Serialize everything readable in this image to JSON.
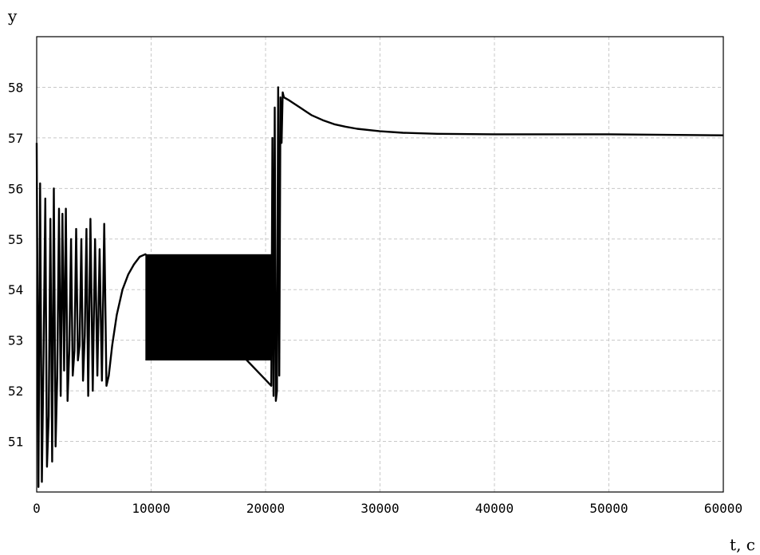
{
  "chart_data": {
    "type": "line",
    "title": "",
    "xlabel": "t, c",
    "ylabel": "y",
    "xlim": [
      0,
      60000
    ],
    "ylim": [
      50.0,
      59.0
    ],
    "x_ticks": [
      0,
      10000,
      20000,
      30000,
      40000,
      50000,
      60000
    ],
    "y_ticks": [
      51,
      52,
      53,
      54,
      55,
      56,
      57,
      58
    ],
    "grid": true,
    "legend": "none",
    "colors": {
      "line": "#000000",
      "grid": "#c8c8c8",
      "frame": "#000000"
    },
    "series": [
      {
        "x": [
          0,
          150,
          300,
          450,
          600,
          750,
          900,
          1050,
          1200,
          1350,
          1500,
          1650,
          1800,
          1950,
          2100,
          2250,
          2400,
          2550,
          2700,
          2850,
          3000,
          3150,
          3300,
          3450,
          3600,
          3750,
          3900,
          4050,
          4200,
          4350,
          4500,
          4700,
          4900,
          5100,
          5300,
          5500,
          5700,
          5900,
          6100,
          6300,
          6600,
          7000,
          7500,
          8000,
          8500,
          9000,
          9500,
          20500,
          20600,
          20700,
          20800,
          20900,
          21000,
          21100,
          21200,
          21300,
          21400,
          21500,
          21600,
          22000,
          23000,
          24000,
          25000,
          26000,
          27000,
          28000,
          30000,
          32000,
          35000,
          40000,
          45000,
          50000,
          55000,
          60000
        ],
        "y": [
          56.9,
          50.1,
          56.1,
          50.2,
          52.7,
          55.8,
          50.5,
          51.5,
          55.4,
          50.6,
          56.0,
          50.9,
          52.3,
          55.6,
          51.9,
          55.5,
          52.4,
          55.6,
          51.8,
          52.8,
          55.0,
          52.3,
          52.8,
          55.2,
          52.6,
          52.9,
          55.0,
          52.2,
          53.1,
          55.2,
          51.9,
          55.4,
          52.0,
          55.0,
          52.3,
          54.8,
          52.2,
          55.3,
          52.1,
          52.3,
          52.9,
          53.5,
          54.0,
          54.3,
          54.5,
          54.65,
          54.7,
          52.1,
          57.0,
          51.9,
          57.6,
          51.8,
          52.0,
          58.0,
          52.3,
          57.8,
          56.9,
          57.9,
          57.8,
          57.75,
          57.6,
          57.45,
          57.35,
          57.27,
          57.22,
          57.18,
          57.13,
          57.1,
          57.08,
          57.07,
          57.07,
          57.07,
          57.06,
          57.05
        ],
        "band": {
          "x_start": 9500,
          "x_end": 20500,
          "y_low": 52.6,
          "y_high": 54.7
        }
      }
    ]
  }
}
